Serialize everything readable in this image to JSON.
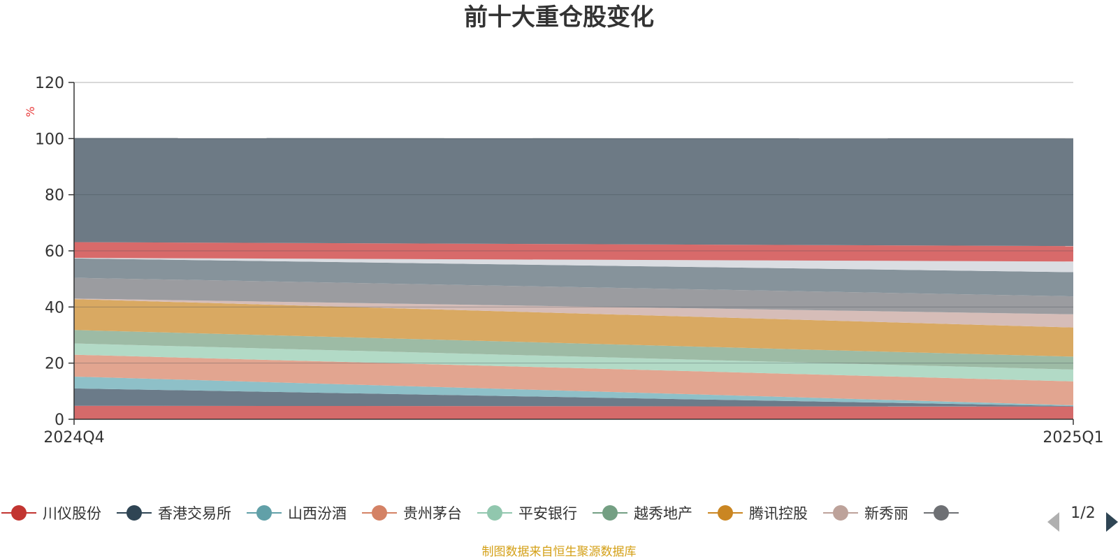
{
  "chart_data": {
    "type": "area",
    "title": "前十大重仓股变化",
    "ylabel": "%",
    "categories": [
      "2024Q4",
      "2025Q1"
    ],
    "ylim": [
      0,
      120
    ],
    "yticks": [
      0,
      20,
      40,
      60,
      80,
      100,
      120
    ],
    "grid": true,
    "stacked": true,
    "series": [
      {
        "name": "川仪股份",
        "color": "#d46a6a",
        "values": [
          4.8,
          4.5
        ]
      },
      {
        "name": "香港交易所",
        "color": "#6b7b89",
        "values": [
          6.2,
          0.2
        ]
      },
      {
        "name": "山西汾酒",
        "color": "#8ec0c8",
        "values": [
          4.2,
          0.3
        ]
      },
      {
        "name": "贵州茅台",
        "color": "#e2a590",
        "values": [
          7.8,
          8.5
        ]
      },
      {
        "name": "平安银行",
        "color": "#b2dac6",
        "values": [
          4.0,
          4.2
        ]
      },
      {
        "name": "越秀地产",
        "color": "#9dbba5",
        "values": [
          4.8,
          4.6
        ]
      },
      {
        "name": "腾讯控股",
        "color": "#d9a962",
        "values": [
          11.0,
          10.4
        ]
      },
      {
        "name": "新秀丽",
        "color": "#d6bdb8",
        "values": [
          0.2,
          4.7
        ]
      },
      {
        "name": "",
        "color": "#9b9ca0",
        "values": [
          7.4,
          6.4
        ]
      },
      {
        "name": "",
        "color": "#86939b",
        "values": [
          6.9,
          8.6
        ]
      },
      {
        "name": "",
        "color": "#dadde2",
        "values": [
          0.2,
          3.8
        ]
      },
      {
        "name": "",
        "color": "#d86a6a",
        "values": [
          5.6,
          5.5
        ]
      },
      {
        "name": "",
        "color": "#6d7a85",
        "values": [
          37.1,
          38.3
        ]
      }
    ],
    "legend_position": "bottom"
  },
  "legend": {
    "items": [
      {
        "name": "川仪股份",
        "color": "#c23531"
      },
      {
        "name": "香港交易所",
        "color": "#2f4554"
      },
      {
        "name": "山西汾酒",
        "color": "#61a0a8"
      },
      {
        "name": "贵州茅台",
        "color": "#d48265"
      },
      {
        "name": "平安银行",
        "color": "#91c7ae"
      },
      {
        "name": "越秀地产",
        "color": "#749f83"
      },
      {
        "name": "腾讯控股",
        "color": "#ca8622"
      },
      {
        "name": "新秀丽",
        "color": "#bda29a"
      },
      {
        "name": "",
        "color": "#6e7074"
      }
    ],
    "page": "1/2"
  },
  "footer": "制图数据来自恒生聚源数据库"
}
